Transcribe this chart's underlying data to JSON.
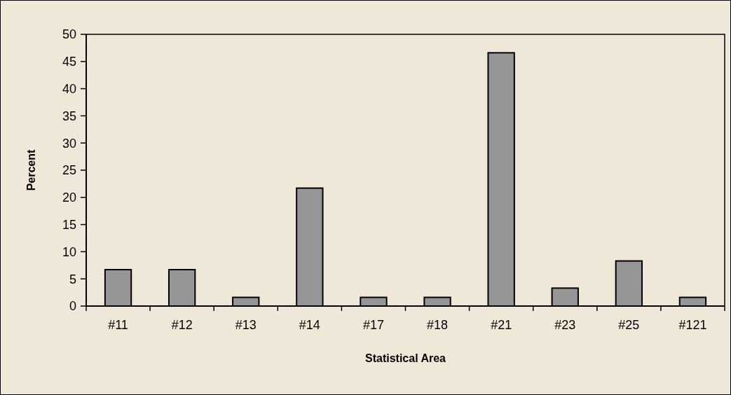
{
  "chart_data": {
    "type": "bar",
    "xlabel": "Statistical Area",
    "ylabel": "Percent",
    "categories": [
      "#11",
      "#12",
      "#13",
      "#14",
      "#17",
      "#18",
      "#21",
      "#23",
      "#25",
      "#121"
    ],
    "values": [
      6.7,
      6.7,
      1.6,
      21.7,
      1.6,
      1.6,
      46.6,
      3.3,
      8.3,
      1.6
    ],
    "color": "#969696",
    "ylim": [
      0,
      50
    ],
    "yticks": [
      0,
      5,
      10,
      15,
      20,
      25,
      30,
      35,
      40,
      45,
      50
    ],
    "grid": false
  }
}
